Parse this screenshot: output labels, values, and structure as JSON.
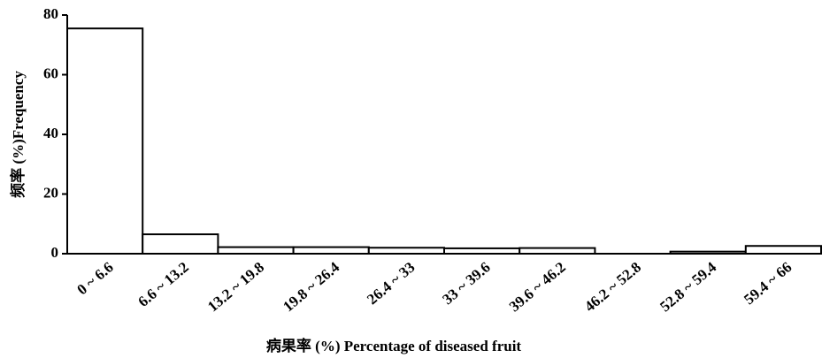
{
  "chart_data": {
    "type": "bar",
    "x_label": "病果率 (%) Percentage of diseased fruit",
    "y_label": "频率 (%)Frequency",
    "categories": [
      "0 ~ 6.6",
      "6.6 ~ 13.2",
      "13.2 ~ 19.8",
      "19.8 ~ 26.4",
      "26.4 ~ 33",
      "33 ~ 39.6",
      "39.6 ~ 46.2",
      "46.2 ~ 52.8",
      "52.8 ~ 59.4",
      "59.4 ~ 66"
    ],
    "values": [
      75.5,
      6.5,
      2.2,
      2.2,
      2,
      1.8,
      1.9,
      0,
      0.7,
      2.6
    ],
    "color": "#ffffff",
    "ylim": [
      0,
      80
    ],
    "yticks": [
      0,
      20,
      40,
      60,
      80
    ],
    "grid": false
  }
}
